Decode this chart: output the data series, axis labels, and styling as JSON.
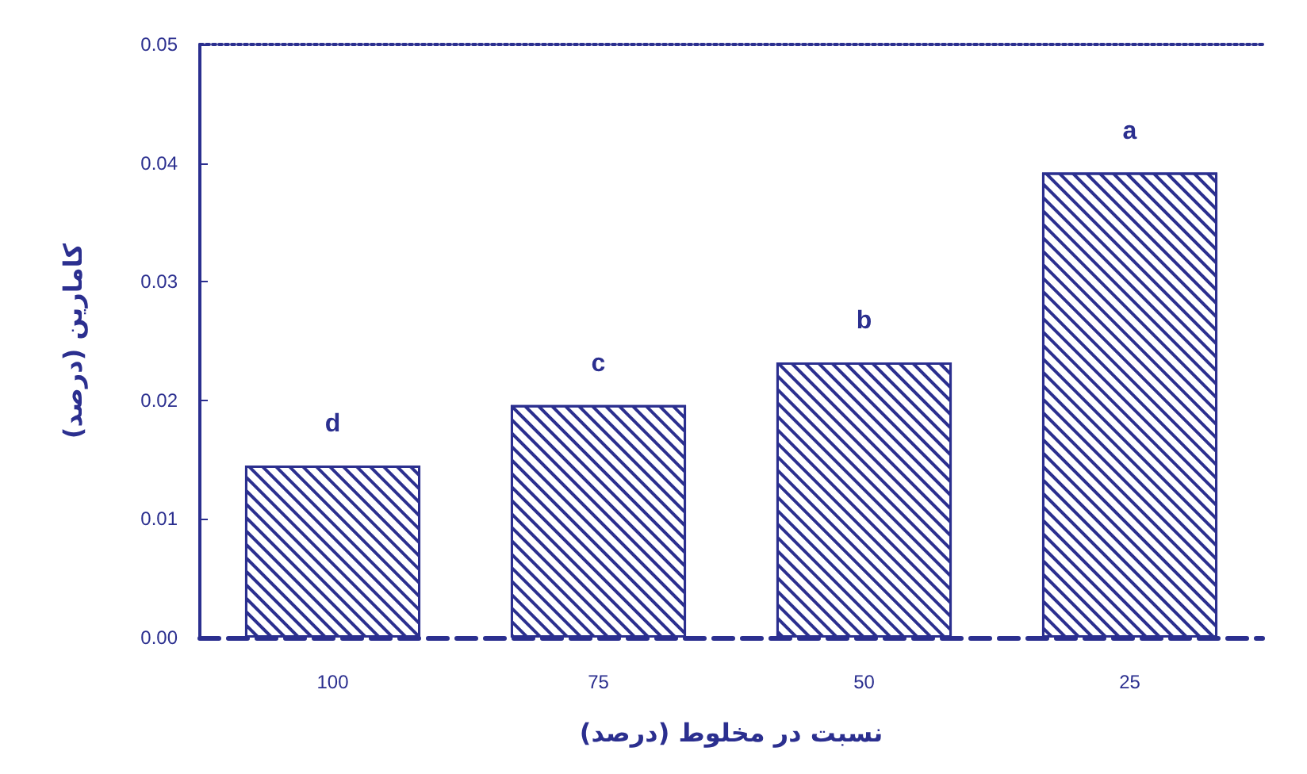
{
  "chart_data": {
    "type": "bar",
    "xlabel": "نسبت در مخلوط (درصد)",
    "ylabel": "کامارین (درصد)",
    "categories": [
      "100",
      "75",
      "50",
      "25"
    ],
    "values": [
      0.0145,
      0.0196,
      0.0232,
      0.0392
    ],
    "value_labels": [
      "d",
      "c",
      "b",
      "a"
    ],
    "color": "#2b2f8f",
    "ylim": [
      0,
      0.05
    ],
    "yticks": [
      {
        "value": 0,
        "label": "0.00"
      },
      {
        "value": 0.01,
        "label": "0.01"
      },
      {
        "value": 0.02,
        "label": "0.02"
      },
      {
        "value": 0.03,
        "label": "0.03"
      },
      {
        "value": 0.04,
        "label": "0.04"
      },
      {
        "value": 0.05,
        "label": "0.05"
      }
    ],
    "grid": false
  }
}
